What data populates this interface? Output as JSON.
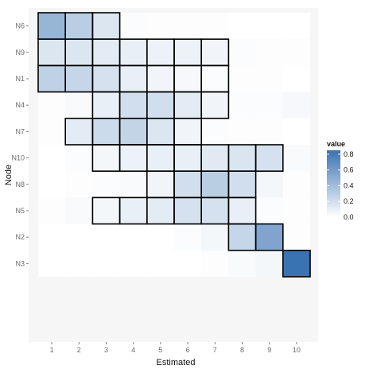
{
  "chart_data": {
    "type": "heatmap",
    "xlabel": "Estimated",
    "ylabel": "Node",
    "x_categories": [
      "1",
      "2",
      "3",
      "4",
      "5",
      "6",
      "7",
      "8",
      "9",
      "10"
    ],
    "y_categories": [
      "N6",
      "N9",
      "N1",
      "N4",
      "N7",
      "N10",
      "N8",
      "N5",
      "N2",
      "N3"
    ],
    "values": [
      [
        0.45,
        0.3,
        0.15,
        0.02,
        0.01,
        0.01,
        0.01,
        0.0,
        0.0,
        0.0
      ],
      [
        0.15,
        0.15,
        0.12,
        0.1,
        0.08,
        0.08,
        0.06,
        0.02,
        0.01,
        0.01
      ],
      [
        0.28,
        0.25,
        0.18,
        0.1,
        0.06,
        0.04,
        0.02,
        0.01,
        0.01,
        0.0
      ],
      [
        0.01,
        0.03,
        0.1,
        0.2,
        0.2,
        0.12,
        0.06,
        0.02,
        0.02,
        0.04
      ],
      [
        0.01,
        0.12,
        0.22,
        0.26,
        0.15,
        0.06,
        0.02,
        0.01,
        0.01,
        0.0
      ],
      [
        0.0,
        0.02,
        0.05,
        0.08,
        0.1,
        0.1,
        0.13,
        0.16,
        0.18,
        0.03
      ],
      [
        0.0,
        0.01,
        0.02,
        0.03,
        0.06,
        0.2,
        0.3,
        0.2,
        0.05,
        0.01
      ],
      [
        0.01,
        0.03,
        0.05,
        0.1,
        0.12,
        0.18,
        0.18,
        0.1,
        0.02,
        0.01
      ],
      [
        0.0,
        0.0,
        0.0,
        0.0,
        0.0,
        0.02,
        0.05,
        0.25,
        0.55,
        0.01
      ],
      [
        0.0,
        0.0,
        0.0,
        0.0,
        0.0,
        0.0,
        0.01,
        0.03,
        0.05,
        0.85
      ]
    ],
    "highlighted_cells": [
      [
        0,
        0
      ],
      [
        0,
        1
      ],
      [
        0,
        2
      ],
      [
        1,
        0
      ],
      [
        1,
        1
      ],
      [
        1,
        2
      ],
      [
        1,
        3
      ],
      [
        1,
        4
      ],
      [
        1,
        5
      ],
      [
        1,
        6
      ],
      [
        2,
        0
      ],
      [
        2,
        1
      ],
      [
        2,
        2
      ],
      [
        2,
        3
      ],
      [
        2,
        4
      ],
      [
        2,
        5
      ],
      [
        2,
        6
      ],
      [
        3,
        2
      ],
      [
        3,
        3
      ],
      [
        3,
        4
      ],
      [
        3,
        5
      ],
      [
        3,
        6
      ],
      [
        4,
        1
      ],
      [
        4,
        2
      ],
      [
        4,
        3
      ],
      [
        4,
        4
      ],
      [
        4,
        5
      ],
      [
        5,
        2
      ],
      [
        5,
        3
      ],
      [
        5,
        4
      ],
      [
        5,
        5
      ],
      [
        5,
        6
      ],
      [
        5,
        7
      ],
      [
        5,
        8
      ],
      [
        6,
        4
      ],
      [
        6,
        5
      ],
      [
        6,
        6
      ],
      [
        6,
        7
      ],
      [
        7,
        2
      ],
      [
        7,
        3
      ],
      [
        7,
        4
      ],
      [
        7,
        5
      ],
      [
        7,
        6
      ],
      [
        7,
        7
      ],
      [
        8,
        7
      ],
      [
        8,
        8
      ],
      [
        9,
        9
      ]
    ],
    "color_scale": {
      "low": "#ffffff",
      "high": "#3a73b1",
      "range": [
        0,
        0.85
      ]
    },
    "legend": {
      "title": "value",
      "ticks": [
        "0.8",
        "0.6",
        "0.4",
        "0.2",
        "0.0"
      ],
      "tick_values": [
        0.8,
        0.6,
        0.4,
        0.2,
        0.0
      ],
      "placement": "right"
    },
    "panel_background": "#f6f6f6",
    "grid": false
  }
}
